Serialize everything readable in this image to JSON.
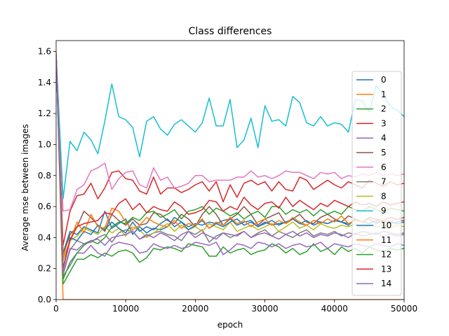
{
  "chart_data": {
    "type": "line",
    "title": "Class differences",
    "xlabel": "epoch",
    "ylabel": "Average mse between images",
    "xlim": [
      0,
      50000
    ],
    "ylim": [
      0,
      1.67
    ],
    "xticks": [
      0,
      10000,
      20000,
      30000,
      40000,
      50000
    ],
    "xtick_labels": [
      "0",
      "10000",
      "20000",
      "30000",
      "40000",
      "50000"
    ],
    "yticks": [
      0.0,
      0.2,
      0.4,
      0.6,
      0.8,
      1.0,
      1.2,
      1.4,
      1.6
    ],
    "ytick_labels": [
      "0.0",
      "0.2",
      "0.4",
      "0.6",
      "0.8",
      "1.0",
      "1.2",
      "1.4",
      "1.6"
    ],
    "grid": false,
    "legend_position": "right",
    "x": [
      0,
      1000,
      2000,
      3000,
      4000,
      5000,
      6000,
      7000,
      8000,
      9000,
      10000,
      11000,
      12000,
      13000,
      14000,
      15000,
      16000,
      17000,
      18000,
      19000,
      20000,
      21000,
      22000,
      23000,
      24000,
      25000,
      26000,
      27000,
      28000,
      29000,
      30000,
      31000,
      32000,
      33000,
      34000,
      35000,
      36000,
      37000,
      38000,
      39000,
      40000,
      41000,
      42000,
      43000,
      44000,
      45000,
      46000,
      47000,
      48000,
      49000,
      50000
    ],
    "series": [
      {
        "name": "0",
        "color": "#1f77b4",
        "values": [
          1.58,
          0.3,
          0.44,
          0.42,
          0.47,
          0.45,
          0.43,
          0.57,
          0.46,
          0.49,
          0.52,
          0.42,
          0.47,
          0.43,
          0.46,
          0.45,
          0.47,
          0.53,
          0.5,
          0.47,
          0.49,
          0.48,
          0.5,
          0.49,
          0.51,
          0.52,
          0.48,
          0.5,
          0.51,
          0.47,
          0.5,
          0.48,
          0.49,
          0.5,
          0.52,
          0.49,
          0.48,
          0.51,
          0.5,
          0.49,
          0.51,
          0.5,
          0.48,
          0.52,
          0.5,
          0.49,
          0.51,
          0.5,
          0.49,
          0.5,
          0.51
        ]
      },
      {
        "name": "1",
        "color": "#ff7f0e",
        "values": [
          1.6,
          0.0,
          0.0,
          0.0,
          0.0,
          0.0,
          0.0,
          0.0,
          0.0,
          0.0,
          0.0,
          0.0,
          0.0,
          0.0,
          0.0,
          0.0,
          0.0,
          0.0,
          0.0,
          0.0,
          0.0,
          0.0,
          0.0,
          0.0,
          0.0,
          0.0,
          0.0,
          0.0,
          0.0,
          0.0,
          0.0,
          0.0,
          0.0,
          0.0,
          0.0,
          0.0,
          0.0,
          0.0,
          0.0,
          0.0,
          0.0,
          0.0,
          0.0,
          0.0,
          0.0,
          0.0,
          0.0,
          0.0,
          0.0,
          0.0,
          0.0
        ]
      },
      {
        "name": "2",
        "color": "#2ca02c",
        "values": [
          1.58,
          0.1,
          0.18,
          0.26,
          0.26,
          0.29,
          0.27,
          0.3,
          0.28,
          0.31,
          0.32,
          0.3,
          0.24,
          0.27,
          0.33,
          0.32,
          0.34,
          0.33,
          0.31,
          0.36,
          0.35,
          0.34,
          0.28,
          0.28,
          0.34,
          0.3,
          0.32,
          0.33,
          0.29,
          0.31,
          0.32,
          0.36,
          0.34,
          0.3,
          0.33,
          0.29,
          0.31,
          0.36,
          0.31,
          0.33,
          0.29,
          0.34,
          0.31,
          0.33,
          0.3,
          0.34,
          0.32,
          0.31,
          0.33,
          0.32,
          0.33
        ]
      },
      {
        "name": "3",
        "color": "#d62728",
        "values": [
          1.58,
          0.35,
          0.57,
          0.67,
          0.68,
          0.75,
          0.65,
          0.72,
          0.82,
          0.83,
          0.78,
          0.77,
          0.7,
          0.68,
          0.79,
          0.68,
          0.72,
          0.72,
          0.69,
          0.71,
          0.74,
          0.76,
          0.7,
          0.76,
          0.63,
          0.74,
          0.66,
          0.75,
          0.77,
          0.74,
          0.76,
          0.7,
          0.76,
          0.71,
          0.7,
          0.79,
          0.77,
          0.71,
          0.74,
          0.77,
          0.74,
          0.72,
          0.76,
          0.74,
          0.72,
          0.77,
          0.75,
          0.73,
          0.76,
          0.74,
          0.75
        ]
      },
      {
        "name": "4",
        "color": "#9467bd",
        "values": [
          1.58,
          0.15,
          0.22,
          0.3,
          0.3,
          0.35,
          0.3,
          0.28,
          0.35,
          0.37,
          0.36,
          0.35,
          0.3,
          0.31,
          0.36,
          0.34,
          0.33,
          0.35,
          0.33,
          0.34,
          0.37,
          0.36,
          0.35,
          0.37,
          0.29,
          0.32,
          0.36,
          0.35,
          0.33,
          0.37,
          0.36,
          0.34,
          0.36,
          0.33,
          0.35,
          0.36,
          0.34,
          0.35,
          0.37,
          0.33,
          0.36,
          0.35,
          0.34,
          0.36,
          0.35,
          0.34,
          0.36,
          0.35,
          0.34,
          0.36,
          0.35
        ]
      },
      {
        "name": "5",
        "color": "#8c564b",
        "values": [
          1.58,
          0.29,
          0.42,
          0.47,
          0.57,
          0.53,
          0.48,
          0.44,
          0.55,
          0.51,
          0.48,
          0.52,
          0.48,
          0.49,
          0.56,
          0.55,
          0.51,
          0.49,
          0.55,
          0.52,
          0.47,
          0.55,
          0.6,
          0.55,
          0.48,
          0.52,
          0.55,
          0.6,
          0.55,
          0.48,
          0.52,
          0.54,
          0.56,
          0.49,
          0.52,
          0.55,
          0.5,
          0.49,
          0.53,
          0.55,
          0.52,
          0.5,
          0.54,
          0.52,
          0.5,
          0.53,
          0.52,
          0.51,
          0.53,
          0.52,
          0.53
        ]
      },
      {
        "name": "6",
        "color": "#e377c2",
        "values": [
          1.58,
          0.57,
          0.58,
          0.71,
          0.74,
          0.83,
          0.85,
          0.88,
          0.71,
          0.78,
          0.82,
          0.83,
          0.74,
          0.72,
          0.85,
          0.77,
          0.79,
          0.72,
          0.73,
          0.75,
          0.8,
          0.8,
          0.76,
          0.77,
          0.77,
          0.77,
          0.79,
          0.79,
          0.83,
          0.79,
          0.8,
          0.78,
          0.8,
          0.83,
          0.82,
          0.82,
          0.8,
          0.78,
          0.82,
          0.81,
          0.82,
          0.78,
          0.8,
          0.79,
          0.81,
          0.8,
          0.82,
          0.8,
          0.81,
          0.8,
          0.81
        ]
      },
      {
        "name": "7",
        "color": "#7f7f7f",
        "values": [
          1.58,
          0.16,
          0.32,
          0.38,
          0.36,
          0.37,
          0.4,
          0.42,
          0.37,
          0.43,
          0.45,
          0.44,
          0.39,
          0.41,
          0.43,
          0.44,
          0.42,
          0.41,
          0.38,
          0.44,
          0.42,
          0.45,
          0.37,
          0.41,
          0.43,
          0.4,
          0.42,
          0.44,
          0.4,
          0.43,
          0.45,
          0.41,
          0.44,
          0.42,
          0.4,
          0.43,
          0.45,
          0.41,
          0.43,
          0.42,
          0.44,
          0.41,
          0.43,
          0.42,
          0.44,
          0.43,
          0.42,
          0.44,
          0.43,
          0.42,
          0.43
        ]
      },
      {
        "name": "8",
        "color": "#bcbd22",
        "values": [
          1.58,
          0.25,
          0.38,
          0.41,
          0.46,
          0.44,
          0.42,
          0.47,
          0.43,
          0.46,
          0.41,
          0.47,
          0.45,
          0.4,
          0.43,
          0.46,
          0.49,
          0.44,
          0.48,
          0.45,
          0.47,
          0.44,
          0.49,
          0.47,
          0.45,
          0.5,
          0.44,
          0.46,
          0.48,
          0.45,
          0.47,
          0.49,
          0.44,
          0.47,
          0.5,
          0.46,
          0.48,
          0.45,
          0.49,
          0.47,
          0.46,
          0.48,
          0.47,
          0.49,
          0.46,
          0.48,
          0.47,
          0.48,
          0.46,
          0.48,
          0.47
        ]
      },
      {
        "name": "9",
        "color": "#17becf",
        "values": [
          1.58,
          0.65,
          1.02,
          0.96,
          1.08,
          1.03,
          0.94,
          1.15,
          1.39,
          1.18,
          1.16,
          1.11,
          0.92,
          1.15,
          1.18,
          1.1,
          1.06,
          1.13,
          1.16,
          1.12,
          1.08,
          1.14,
          1.3,
          1.12,
          1.12,
          1.29,
          0.98,
          1.03,
          1.17,
          0.98,
          1.25,
          1.15,
          1.16,
          1.12,
          1.31,
          1.27,
          1.14,
          1.12,
          1.18,
          1.12,
          1.14,
          1.13,
          1.08,
          1.29,
          1.28,
          1.21,
          1.38,
          1.32,
          1.25,
          1.22,
          1.18
        ]
      },
      {
        "name": "10",
        "color": "#1f77b4",
        "values": [
          1.58,
          0.2,
          0.4,
          0.38,
          0.44,
          0.42,
          0.48,
          0.45,
          0.5,
          0.46,
          0.43,
          0.5,
          0.44,
          0.47,
          0.45,
          0.49,
          0.52,
          0.47,
          0.5,
          0.45,
          0.48,
          0.51,
          0.46,
          0.49,
          0.47,
          0.5,
          0.52,
          0.48,
          0.5,
          0.47,
          0.49,
          0.51,
          0.48,
          0.5,
          0.52,
          0.49,
          0.51,
          0.48,
          0.5,
          0.49,
          0.51,
          0.5,
          0.49,
          0.51,
          0.5,
          0.52,
          0.49,
          0.51,
          0.5,
          0.49,
          0.5
        ]
      },
      {
        "name": "11",
        "color": "#ff7f0e",
        "values": [
          1.58,
          0.27,
          0.38,
          0.5,
          0.43,
          0.55,
          0.47,
          0.46,
          0.59,
          0.57,
          0.5,
          0.45,
          0.48,
          0.53,
          0.5,
          0.48,
          0.47,
          0.51,
          0.46,
          0.49,
          0.48,
          0.52,
          0.46,
          0.5,
          0.48,
          0.53,
          0.49,
          0.51,
          0.47,
          0.5,
          0.52,
          0.48,
          0.51,
          0.49,
          0.53,
          0.5,
          0.48,
          0.51,
          0.49,
          0.52,
          0.5,
          0.54,
          0.49,
          0.51,
          0.5,
          0.52,
          0.5,
          0.51,
          0.5,
          0.52,
          0.51
        ]
      },
      {
        "name": "12",
        "color": "#2ca02c",
        "values": [
          1.58,
          0.13,
          0.24,
          0.3,
          0.35,
          0.38,
          0.36,
          0.4,
          0.47,
          0.5,
          0.49,
          0.53,
          0.51,
          0.56,
          0.57,
          0.53,
          0.55,
          0.58,
          0.52,
          0.57,
          0.58,
          0.6,
          0.55,
          0.59,
          0.57,
          0.54,
          0.56,
          0.52,
          0.55,
          0.57,
          0.53,
          0.6,
          0.6,
          0.55,
          0.58,
          0.56,
          0.58,
          0.54,
          0.58,
          0.55,
          0.57,
          0.55,
          0.6,
          0.58,
          0.57,
          0.6,
          0.58,
          0.56,
          0.59,
          0.58,
          0.57
        ]
      },
      {
        "name": "13",
        "color": "#d62728",
        "values": [
          1.58,
          0.2,
          0.38,
          0.47,
          0.49,
          0.5,
          0.51,
          0.56,
          0.55,
          0.62,
          0.65,
          0.58,
          0.62,
          0.56,
          0.6,
          0.58,
          0.57,
          0.63,
          0.6,
          0.55,
          0.56,
          0.58,
          0.64,
          0.63,
          0.57,
          0.6,
          0.58,
          0.66,
          0.61,
          0.58,
          0.62,
          0.63,
          0.59,
          0.66,
          0.6,
          0.64,
          0.61,
          0.58,
          0.62,
          0.6,
          0.64,
          0.62,
          0.6,
          0.63,
          0.61,
          0.62,
          0.6,
          0.63,
          0.61,
          0.62,
          0.63
        ]
      },
      {
        "name": "14",
        "color": "#9467bd",
        "values": [
          1.58,
          0.17,
          0.33,
          0.32,
          0.36,
          0.38,
          0.39,
          0.35,
          0.4,
          0.41,
          0.42,
          0.44,
          0.39,
          0.42,
          0.4,
          0.43,
          0.41,
          0.38,
          0.42,
          0.44,
          0.4,
          0.43,
          0.41,
          0.39,
          0.43,
          0.42,
          0.41,
          0.44,
          0.4,
          0.42,
          0.43,
          0.41,
          0.39,
          0.42,
          0.44,
          0.41,
          0.43,
          0.4,
          0.42,
          0.41,
          0.43,
          0.42,
          0.4,
          0.43,
          0.41,
          0.42,
          0.43,
          0.41,
          0.42,
          0.41,
          0.42
        ]
      }
    ]
  }
}
